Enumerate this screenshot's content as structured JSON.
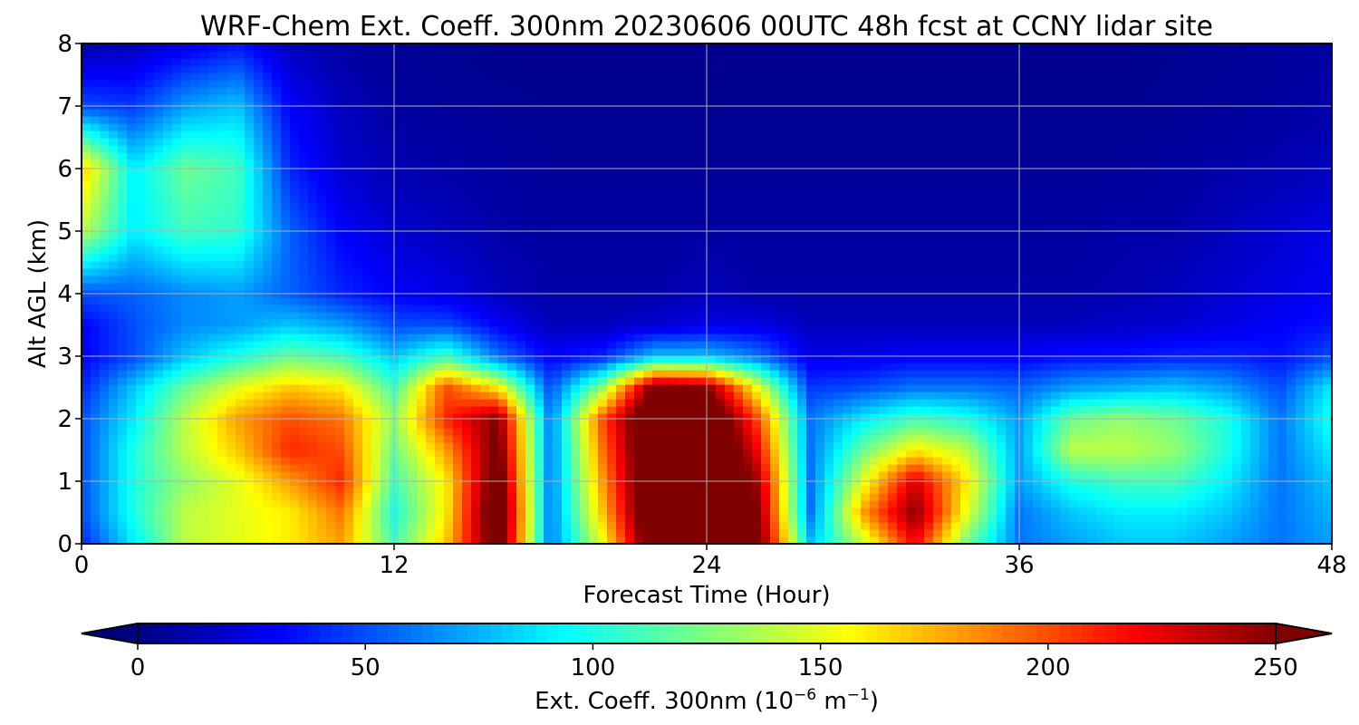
{
  "chart_data": {
    "type": "heatmap",
    "title": "WRF-Chem Ext. Coeff. 300nm  20230606 00UTC 48h fcst at CCNY lidar site",
    "xlabel": "Forecast Time (Hour)",
    "ylabel": "Alt AGL (km)",
    "xlim": [
      0,
      48
    ],
    "ylim": [
      0,
      8
    ],
    "x_ticks": [
      "0",
      "12",
      "24",
      "36",
      "48"
    ],
    "y_ticks": [
      "0",
      "1",
      "2",
      "3",
      "4",
      "5",
      "6",
      "7",
      "8"
    ],
    "grid": true,
    "colormap": "jet",
    "vmin": 0,
    "vmax": 250,
    "extend": "both",
    "colorbar": {
      "orientation": "horizontal",
      "placement": "bottom",
      "ticks": [
        "0",
        "50",
        "100",
        "150",
        "200",
        "250"
      ],
      "label_text": "Ext. Coeff. 300nm  (10",
      "label_exp1": "−6",
      "label_mid": " m",
      "label_exp2": "−1",
      "label_end": ")"
    },
    "x": [
      0,
      2,
      4,
      6,
      8,
      10,
      12,
      14,
      16,
      18,
      20,
      22,
      24,
      26,
      28,
      30,
      32,
      34,
      36,
      38,
      40,
      42,
      44,
      46,
      48
    ],
    "y": [
      0,
      0.5,
      1,
      1.5,
      2,
      2.5,
      3,
      3.5,
      4,
      5,
      6,
      7,
      8
    ],
    "z": [
      [
        40,
        90,
        140,
        150,
        160,
        180,
        110,
        170,
        270,
        60,
        150,
        280,
        290,
        260,
        80,
        140,
        220,
        120,
        60,
        70,
        80,
        80,
        70,
        60,
        70
      ],
      [
        50,
        100,
        140,
        150,
        160,
        190,
        100,
        160,
        280,
        60,
        170,
        290,
        300,
        250,
        60,
        180,
        250,
        150,
        60,
        80,
        90,
        90,
        80,
        60,
        75
      ],
      [
        50,
        100,
        130,
        150,
        180,
        210,
        110,
        160,
        270,
        60,
        180,
        290,
        300,
        240,
        60,
        150,
        230,
        160,
        70,
        100,
        110,
        110,
        90,
        60,
        80
      ],
      [
        50,
        100,
        140,
        170,
        210,
        200,
        120,
        180,
        260,
        60,
        190,
        290,
        300,
        220,
        60,
        120,
        160,
        140,
        70,
        140,
        140,
        130,
        100,
        60,
        90
      ],
      [
        50,
        90,
        140,
        180,
        200,
        190,
        130,
        210,
        250,
        60,
        200,
        290,
        290,
        200,
        60,
        90,
        110,
        100,
        70,
        120,
        130,
        120,
        100,
        60,
        100
      ],
      [
        40,
        80,
        120,
        150,
        170,
        160,
        110,
        200,
        160,
        50,
        130,
        260,
        250,
        150,
        45,
        50,
        60,
        60,
        55,
        70,
        75,
        80,
        70,
        50,
        90
      ],
      [
        30,
        50,
        80,
        100,
        120,
        110,
        80,
        110,
        60,
        30,
        40,
        80,
        80,
        60,
        25,
        25,
        30,
        30,
        30,
        35,
        35,
        40,
        40,
        35,
        50
      ],
      [
        30,
        50,
        65,
        70,
        80,
        70,
        50,
        50,
        30,
        15,
        15,
        20,
        25,
        25,
        15,
        15,
        15,
        15,
        15,
        15,
        18,
        20,
        25,
        30,
        35
      ],
      [
        50,
        55,
        65,
        70,
        55,
        40,
        30,
        25,
        15,
        10,
        10,
        10,
        15,
        10,
        10,
        10,
        10,
        10,
        10,
        10,
        12,
        15,
        20,
        25,
        30
      ],
      [
        140,
        90,
        110,
        105,
        55,
        30,
        20,
        15,
        10,
        8,
        8,
        8,
        8,
        8,
        8,
        8,
        8,
        8,
        8,
        8,
        10,
        10,
        15,
        20,
        25
      ],
      [
        170,
        90,
        120,
        110,
        40,
        20,
        12,
        10,
        8,
        6,
        6,
        6,
        6,
        6,
        6,
        6,
        6,
        6,
        6,
        6,
        6,
        8,
        10,
        12,
        15
      ],
      [
        50,
        45,
        70,
        80,
        30,
        15,
        8,
        6,
        5,
        4,
        4,
        4,
        4,
        4,
        4,
        4,
        4,
        4,
        4,
        4,
        4,
        5,
        6,
        8,
        10
      ],
      [
        10,
        15,
        25,
        35,
        15,
        8,
        5,
        4,
        3,
        3,
        3,
        3,
        3,
        3,
        3,
        3,
        3,
        3,
        3,
        3,
        3,
        4,
        5,
        6,
        8
      ]
    ]
  }
}
